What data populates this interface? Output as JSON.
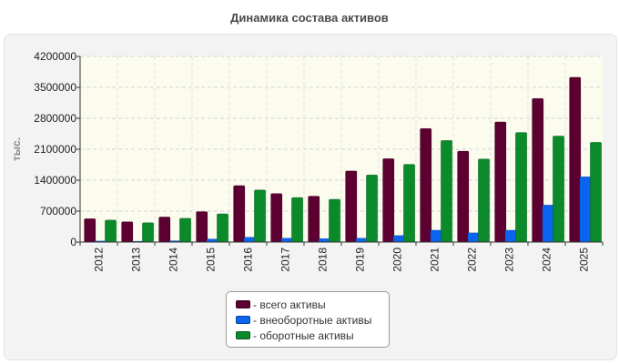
{
  "colors": {
    "total_assets": "#5c0031",
    "non_current_assets": "#0a64f0",
    "current_assets": "#0b8a2c"
  },
  "legend": {
    "items": [
      {
        "label": "- всего активы",
        "color": "#5c0031"
      },
      {
        "label": "- внеоборотные активы",
        "color": "#0a64f0"
      },
      {
        "label": "- оборотные активы",
        "color": "#0b8a2c"
      }
    ]
  },
  "chart_data": {
    "type": "bar",
    "title": "Динамика состава активов",
    "ylabel": "тыс.",
    "xlabel": "",
    "ylim": [
      0,
      4200000
    ],
    "yticks": [
      "0",
      "700000",
      "1400000",
      "2100000",
      "2800000",
      "3500000",
      "4200000"
    ],
    "grid": true,
    "legend_position": "bottom",
    "categories": [
      "2012",
      "2013",
      "2014",
      "2015",
      "2016",
      "2017",
      "2018",
      "2019",
      "2020",
      "2021",
      "2022",
      "2023",
      "2024",
      "2025"
    ],
    "series": [
      {
        "name": "- всего активы",
        "values": [
          530000,
          460000,
          570000,
          690000,
          1280000,
          1100000,
          1040000,
          1610000,
          1890000,
          2570000,
          2060000,
          2720000,
          3250000,
          3730000
        ]
      },
      {
        "name": "- внеоборотные активы",
        "values": [
          25000,
          20000,
          30000,
          70000,
          110000,
          90000,
          80000,
          90000,
          150000,
          270000,
          210000,
          270000,
          840000,
          1480000
        ]
      },
      {
        "name": "- оборотные активы",
        "values": [
          500000,
          440000,
          540000,
          640000,
          1180000,
          1010000,
          970000,
          1520000,
          1760000,
          2300000,
          1880000,
          2480000,
          2400000,
          2260000
        ]
      }
    ]
  }
}
